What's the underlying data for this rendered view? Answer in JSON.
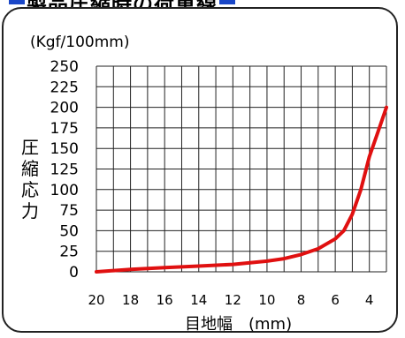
{
  "title": "製品圧縮時の荷重線",
  "colors": {
    "accent": "#1a47c8",
    "series": "#e01010",
    "grid": "#222222"
  },
  "chart_data": {
    "type": "line",
    "unit_label": "(Kgf/100mm)",
    "ylabel": "圧縮応力",
    "xlabel": "目地幅　(mm)",
    "xlim": [
      20,
      3
    ],
    "ylim": [
      0,
      250
    ],
    "x_ticks": [
      20,
      18,
      16,
      14,
      12,
      10,
      8,
      6,
      4
    ],
    "y_ticks": [
      0,
      25,
      50,
      75,
      100,
      125,
      150,
      175,
      200,
      225,
      250
    ],
    "grid": true,
    "series": [
      {
        "x": [
          20,
          18,
          16,
          14,
          12,
          10,
          9,
          8,
          7,
          6,
          5.5,
          5,
          4.5,
          4,
          3.5,
          3
        ],
        "values": [
          0,
          3,
          5,
          7,
          9,
          13,
          16,
          21,
          28,
          40,
          50,
          70,
          100,
          140,
          170,
          200
        ]
      }
    ]
  }
}
